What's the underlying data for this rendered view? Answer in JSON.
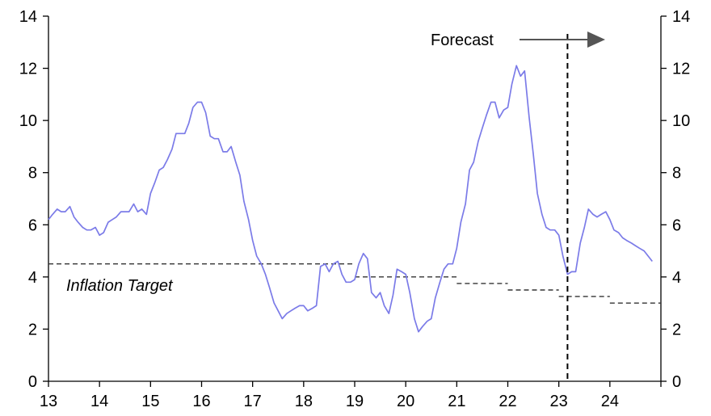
{
  "chart_data": {
    "type": "line",
    "title": "",
    "xlabel": "",
    "ylabel": "",
    "xlim": [
      13,
      25
    ],
    "ylim": [
      0,
      14
    ],
    "y_ticks": [
      0,
      2,
      4,
      6,
      8,
      10,
      12,
      14
    ],
    "x_ticks": [
      13,
      14,
      15,
      16,
      17,
      18,
      19,
      20,
      21,
      22,
      23,
      24
    ],
    "secondary_y_axis": {
      "ylim": [
        0,
        14
      ],
      "ticks": [
        0,
        2,
        4,
        6,
        8,
        10,
        12,
        14
      ]
    },
    "grid": false,
    "annotations": {
      "forecast_label": "Forecast",
      "forecast_start_x": 23.17,
      "inflation_target_label": "Inflation Target"
    },
    "colors": {
      "series": "#7b7be8",
      "target": "#333333",
      "axis": "#000000"
    },
    "series": [
      {
        "values": [
          [
            13.0,
            6.2
          ],
          [
            13.08,
            6.4
          ],
          [
            13.17,
            6.6
          ],
          [
            13.25,
            6.5
          ],
          [
            13.33,
            6.5
          ],
          [
            13.42,
            6.7
          ],
          [
            13.5,
            6.3
          ],
          [
            13.58,
            6.1
          ],
          [
            13.67,
            5.9
          ],
          [
            13.75,
            5.8
          ],
          [
            13.83,
            5.8
          ],
          [
            13.92,
            5.9
          ],
          [
            14.0,
            5.6
          ],
          [
            14.08,
            5.7
          ],
          [
            14.17,
            6.1
          ],
          [
            14.25,
            6.2
          ],
          [
            14.33,
            6.3
          ],
          [
            14.42,
            6.5
          ],
          [
            14.5,
            6.5
          ],
          [
            14.58,
            6.5
          ],
          [
            14.67,
            6.8
          ],
          [
            14.75,
            6.5
          ],
          [
            14.83,
            6.6
          ],
          [
            14.92,
            6.4
          ],
          [
            15.0,
            7.2
          ],
          [
            15.08,
            7.6
          ],
          [
            15.17,
            8.1
          ],
          [
            15.25,
            8.2
          ],
          [
            15.33,
            8.5
          ],
          [
            15.42,
            8.9
          ],
          [
            15.5,
            9.5
          ],
          [
            15.58,
            9.5
          ],
          [
            15.67,
            9.5
          ],
          [
            15.75,
            9.9
          ],
          [
            15.83,
            10.5
          ],
          [
            15.92,
            10.7
          ],
          [
            16.0,
            10.7
          ],
          [
            16.08,
            10.3
          ],
          [
            16.17,
            9.4
          ],
          [
            16.25,
            9.3
          ],
          [
            16.33,
            9.3
          ],
          [
            16.42,
            8.8
          ],
          [
            16.5,
            8.8
          ],
          [
            16.58,
            9.0
          ],
          [
            16.67,
            8.4
          ],
          [
            16.75,
            7.9
          ],
          [
            16.83,
            6.9
          ],
          [
            16.92,
            6.2
          ],
          [
            17.0,
            5.4
          ],
          [
            17.08,
            4.8
          ],
          [
            17.17,
            4.5
          ],
          [
            17.25,
            4.1
          ],
          [
            17.33,
            3.6
          ],
          [
            17.42,
            3.0
          ],
          [
            17.5,
            2.7
          ],
          [
            17.58,
            2.4
          ],
          [
            17.67,
            2.6
          ],
          [
            17.75,
            2.7
          ],
          [
            17.83,
            2.8
          ],
          [
            17.92,
            2.9
          ],
          [
            18.0,
            2.9
          ],
          [
            18.08,
            2.7
          ],
          [
            18.17,
            2.8
          ],
          [
            18.25,
            2.9
          ],
          [
            18.33,
            4.4
          ],
          [
            18.42,
            4.5
          ],
          [
            18.5,
            4.2
          ],
          [
            18.58,
            4.5
          ],
          [
            18.67,
            4.6
          ],
          [
            18.75,
            4.1
          ],
          [
            18.83,
            3.8
          ],
          [
            18.92,
            3.8
          ],
          [
            19.0,
            3.9
          ],
          [
            19.08,
            4.5
          ],
          [
            19.17,
            4.9
          ],
          [
            19.25,
            4.7
          ],
          [
            19.33,
            3.4
          ],
          [
            19.42,
            3.2
          ],
          [
            19.5,
            3.4
          ],
          [
            19.58,
            2.9
          ],
          [
            19.67,
            2.6
          ],
          [
            19.75,
            3.3
          ],
          [
            19.83,
            4.3
          ],
          [
            19.92,
            4.2
          ],
          [
            20.0,
            4.1
          ],
          [
            20.08,
            3.4
          ],
          [
            20.17,
            2.4
          ],
          [
            20.25,
            1.9
          ],
          [
            20.33,
            2.1
          ],
          [
            20.42,
            2.3
          ],
          [
            20.5,
            2.4
          ],
          [
            20.58,
            3.2
          ],
          [
            20.67,
            3.8
          ],
          [
            20.75,
            4.3
          ],
          [
            20.83,
            4.5
          ],
          [
            20.92,
            4.5
          ],
          [
            21.0,
            5.1
          ],
          [
            21.08,
            6.1
          ],
          [
            21.17,
            6.8
          ],
          [
            21.25,
            8.1
          ],
          [
            21.33,
            8.4
          ],
          [
            21.42,
            9.2
          ],
          [
            21.5,
            9.7
          ],
          [
            21.58,
            10.2
          ],
          [
            21.67,
            10.7
          ],
          [
            21.75,
            10.7
          ],
          [
            21.83,
            10.1
          ],
          [
            21.92,
            10.4
          ],
          [
            22.0,
            10.5
          ],
          [
            22.08,
            11.4
          ],
          [
            22.17,
            12.1
          ],
          [
            22.25,
            11.7
          ],
          [
            22.33,
            11.9
          ],
          [
            22.42,
            10.1
          ],
          [
            22.5,
            8.7
          ],
          [
            22.58,
            7.2
          ],
          [
            22.67,
            6.4
          ],
          [
            22.75,
            5.9
          ],
          [
            22.83,
            5.8
          ],
          [
            22.92,
            5.8
          ],
          [
            23.0,
            5.6
          ],
          [
            23.08,
            4.8
          ],
          [
            23.17,
            4.1
          ],
          [
            23.25,
            4.2
          ],
          [
            23.33,
            4.2
          ],
          [
            23.42,
            5.3
          ],
          [
            23.5,
            5.9
          ],
          [
            23.58,
            6.6
          ],
          [
            23.67,
            6.4
          ],
          [
            23.75,
            6.3
          ],
          [
            23.83,
            6.4
          ],
          [
            23.92,
            6.5
          ],
          [
            24.0,
            6.2
          ],
          [
            24.08,
            5.8
          ],
          [
            24.17,
            5.7
          ],
          [
            24.25,
            5.5
          ],
          [
            24.33,
            5.4
          ],
          [
            24.42,
            5.3
          ],
          [
            24.5,
            5.2
          ],
          [
            24.58,
            5.1
          ],
          [
            24.67,
            5.0
          ],
          [
            24.75,
            4.8
          ],
          [
            24.83,
            4.6
          ]
        ]
      }
    ],
    "inflation_target_steps": [
      {
        "x_start": 13.0,
        "x_end": 19.0,
        "y": 4.5
      },
      {
        "x_start": 19.0,
        "x_end": 21.0,
        "y": 4.0
      },
      {
        "x_start": 21.0,
        "x_end": 22.0,
        "y": 3.75
      },
      {
        "x_start": 22.0,
        "x_end": 23.0,
        "y": 3.5
      },
      {
        "x_start": 23.0,
        "x_end": 24.0,
        "y": 3.25
      },
      {
        "x_start": 24.0,
        "x_end": 25.0,
        "y": 3.0
      }
    ]
  }
}
